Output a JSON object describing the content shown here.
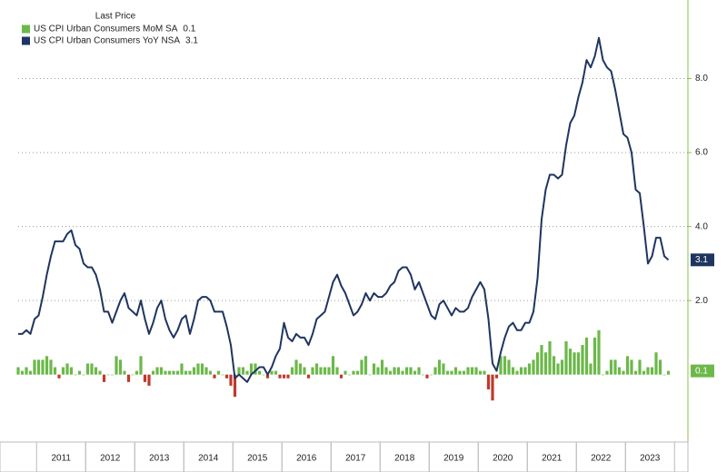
{
  "chart_data": {
    "type": "combo",
    "legend_title": "Last Price",
    "legend_position": "upper left",
    "ylim": [
      -1.7,
      10
    ],
    "yticks": [
      {
        "value": 2,
        "label": "2.0"
      },
      {
        "value": 4,
        "label": "4.0"
      },
      {
        "value": 6,
        "label": "6.0"
      },
      {
        "value": 8,
        "label": "8.0"
      }
    ],
    "grid": true,
    "categories": [
      null,
      null,
      null,
      null,
      null,
      null,
      null,
      null,
      null,
      null,
      null,
      "2011",
      null,
      null,
      null,
      null,
      null,
      null,
      null,
      null,
      null,
      null,
      null,
      "2012",
      null,
      null,
      null,
      null,
      null,
      null,
      null,
      null,
      null,
      null,
      null,
      "2013",
      null,
      null,
      null,
      null,
      null,
      null,
      null,
      null,
      null,
      null,
      null,
      "2014",
      null,
      null,
      null,
      null,
      null,
      null,
      null,
      null,
      null,
      null,
      null,
      "2015",
      null,
      null,
      null,
      null,
      null,
      null,
      null,
      null,
      null,
      null,
      null,
      "2016",
      null,
      null,
      null,
      null,
      null,
      null,
      null,
      null,
      null,
      null,
      null,
      "2017",
      null,
      null,
      null,
      null,
      null,
      null,
      null,
      null,
      null,
      null,
      null,
      "2018",
      null,
      null,
      null,
      null,
      null,
      null,
      null,
      null,
      null,
      null,
      null,
      "2019",
      null,
      null,
      null,
      null,
      null,
      null,
      null,
      null,
      null,
      null,
      null,
      "2020",
      null,
      null,
      null,
      null,
      null,
      null,
      null,
      null,
      null,
      null,
      null,
      "2021",
      null,
      null,
      null,
      null,
      null,
      null,
      null,
      null,
      null,
      null,
      null,
      "2022",
      null,
      null,
      null,
      null,
      null,
      null,
      null,
      null,
      null,
      null,
      null,
      "2023",
      null,
      null,
      null,
      null
    ],
    "series": [
      {
        "name": "US CPI Urban Consumers MoM SA",
        "type": "bar",
        "color": "#6cb84a",
        "negative_color": "#c0392b",
        "values": [
          0.2,
          0.1,
          0.2,
          0.1,
          0.4,
          0.4,
          0.4,
          0.5,
          0.4,
          0.2,
          -0.1,
          0.2,
          0.3,
          0.2,
          0.0,
          0.1,
          0.0,
          0.3,
          0.3,
          0.2,
          0.1,
          -0.2,
          0.0,
          0.0,
          0.5,
          0.4,
          0.1,
          -0.2,
          0.0,
          0.1,
          0.5,
          -0.2,
          -0.3,
          0.1,
          0.2,
          0.2,
          0.1,
          0.1,
          0.1,
          0.1,
          0.3,
          0.1,
          0.1,
          0.2,
          0.3,
          0.3,
          0.2,
          0.1,
          -0.1,
          0.1,
          0.0,
          -0.1,
          -0.3,
          -0.6,
          0.2,
          0.2,
          0.1,
          0.3,
          0.3,
          0.1,
          0.0,
          -0.1,
          0.1,
          0.1,
          -0.1,
          -0.1,
          -0.1,
          0.2,
          0.4,
          0.3,
          0.2,
          -0.1,
          0.2,
          0.3,
          0.2,
          0.2,
          0.2,
          0.5,
          0.2,
          -0.1,
          0.1,
          0.0,
          0.1,
          0.1,
          0.4,
          0.5,
          0.0,
          0.3,
          0.2,
          0.4,
          0.2,
          0.1,
          0.2,
          0.2,
          0.1,
          0.2,
          0.2,
          0.1,
          0.2,
          0.0,
          -0.1,
          0.0,
          0.2,
          0.4,
          0.3,
          0.1,
          0.1,
          0.2,
          0.1,
          0.1,
          0.2,
          0.2,
          0.2,
          0.1,
          0.1,
          -0.4,
          -0.7,
          -0.1,
          0.5,
          0.5,
          0.4,
          0.2,
          0.1,
          0.2,
          0.2,
          0.3,
          0.4,
          0.6,
          0.8,
          0.6,
          0.9,
          0.5,
          0.3,
          0.4,
          0.9,
          0.7,
          0.6,
          0.6,
          0.8,
          1.0,
          0.3,
          1.0,
          1.2,
          0.0,
          0.1,
          0.4,
          0.4,
          0.2,
          0.1,
          0.5,
          0.4,
          0.1,
          0.4,
          0.1,
          0.2,
          0.2,
          0.6,
          0.4,
          0.0,
          0.1
        ]
      },
      {
        "name": "US CPI Urban Consumers YoY NSA",
        "type": "line",
        "color": "#1f3560",
        "values": [
          1.1,
          1.1,
          1.2,
          1.1,
          1.5,
          1.6,
          2.1,
          2.7,
          3.2,
          3.6,
          3.6,
          3.6,
          3.8,
          3.9,
          3.5,
          3.4,
          3.0,
          2.9,
          2.9,
          2.7,
          2.3,
          1.7,
          1.7,
          1.4,
          1.7,
          2.0,
          2.2,
          1.8,
          1.7,
          1.6,
          2.0,
          1.5,
          1.1,
          1.4,
          1.8,
          2.0,
          1.5,
          1.2,
          1.0,
          1.2,
          1.5,
          1.6,
          1.1,
          1.5,
          2.0,
          2.1,
          2.1,
          2.0,
          1.7,
          1.7,
          1.7,
          1.3,
          0.8,
          -0.1,
          0.0,
          -0.1,
          -0.2,
          0.0,
          0.1,
          0.2,
          0.2,
          0.0,
          0.2,
          0.5,
          0.7,
          1.4,
          1.0,
          0.9,
          1.1,
          1.0,
          1.0,
          0.8,
          1.1,
          1.5,
          1.6,
          1.7,
          2.1,
          2.5,
          2.7,
          2.4,
          2.2,
          1.9,
          1.6,
          1.7,
          1.9,
          2.2,
          2.0,
          2.2,
          2.1,
          2.1,
          2.2,
          2.4,
          2.5,
          2.8,
          2.9,
          2.9,
          2.7,
          2.3,
          2.5,
          2.2,
          1.9,
          1.6,
          1.5,
          1.9,
          2.0,
          1.8,
          1.6,
          1.8,
          1.7,
          1.7,
          1.8,
          2.1,
          2.3,
          2.5,
          2.3,
          1.5,
          0.3,
          0.1,
          0.6,
          1.0,
          1.3,
          1.4,
          1.2,
          1.2,
          1.4,
          1.4,
          1.7,
          2.6,
          4.2,
          5.0,
          5.4,
          5.4,
          5.3,
          5.4,
          6.2,
          6.8,
          7.0,
          7.5,
          7.9,
          8.5,
          8.3,
          8.6,
          9.1,
          8.5,
          8.3,
          8.2,
          7.7,
          7.1,
          6.5,
          6.4,
          6.0,
          5.0,
          4.9,
          4.0,
          3.0,
          3.2,
          3.7,
          3.7,
          3.2,
          3.1
        ]
      }
    ]
  }
}
